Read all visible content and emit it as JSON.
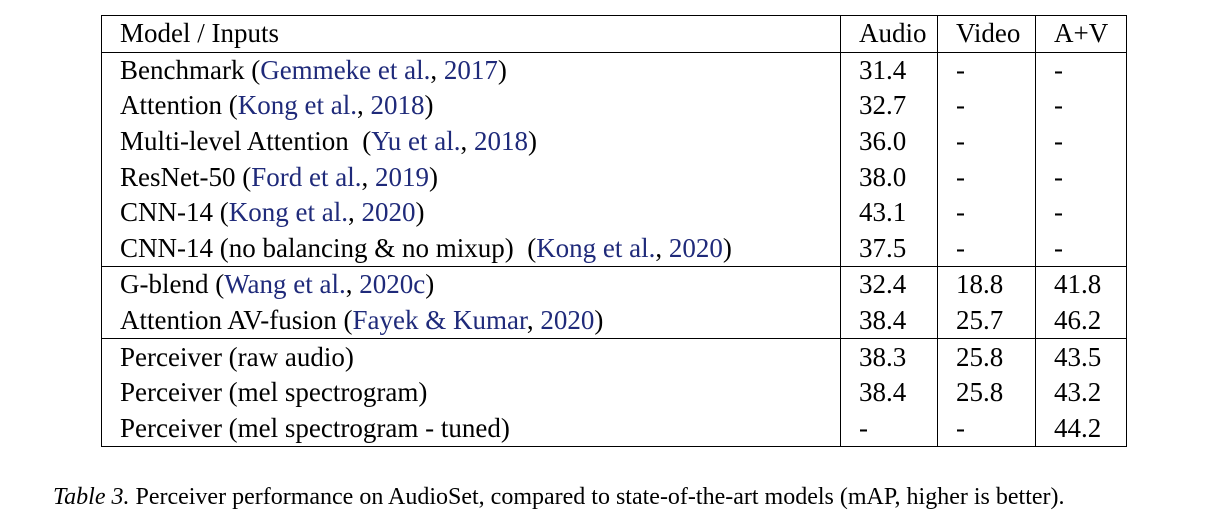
{
  "table": {
    "headers": [
      "Model / Inputs",
      "Audio",
      "Video",
      "A+V"
    ],
    "rows": [
      {
        "pre": "Benchmark (",
        "cite_authors": "Gemmeke et al.",
        "cite_sep": ", ",
        "cite_year": "2017",
        "post": ")",
        "audio": "31.4",
        "video": "-",
        "av": "-"
      },
      {
        "pre": "Attention (",
        "cite_authors": "Kong et al.",
        "cite_sep": ", ",
        "cite_year": "2018",
        "post": ")",
        "audio": "32.7",
        "video": "-",
        "av": "-"
      },
      {
        "pre": "Multi-level Attention  (",
        "cite_authors": "Yu et al.",
        "cite_sep": ", ",
        "cite_year": "2018",
        "post": ")",
        "audio": "36.0",
        "video": "-",
        "av": "-"
      },
      {
        "pre": "ResNet-50 (",
        "cite_authors": "Ford et al.",
        "cite_sep": ", ",
        "cite_year": "2019",
        "post": ")",
        "audio": "38.0",
        "video": "-",
        "av": "-"
      },
      {
        "pre": "CNN-14 (",
        "cite_authors": "Kong et al.",
        "cite_sep": ", ",
        "cite_year": "2020",
        "post": ")",
        "audio": "43.1",
        "video": "-",
        "av": "-"
      },
      {
        "pre": "CNN-14 (no balancing & no mixup)  (",
        "cite_authors": "Kong et al.",
        "cite_sep": ", ",
        "cite_year": "2020",
        "post": ")",
        "audio": "37.5",
        "video": "-",
        "av": "-"
      },
      {
        "pre": "G-blend (",
        "cite_authors": "Wang et al.",
        "cite_sep": ", ",
        "cite_year": "2020c",
        "post": ")",
        "audio": "32.4",
        "video": "18.8",
        "av": "41.8"
      },
      {
        "pre": "Attention AV-fusion (",
        "cite_authors": "Fayek & Kumar",
        "cite_sep": ", ",
        "cite_year": "2020",
        "post": ")",
        "audio": "38.4",
        "video": "25.7",
        "av": "46.2"
      },
      {
        "pre": "Perceiver (raw audio)",
        "audio": "38.3",
        "video": "25.8",
        "av": "43.5"
      },
      {
        "pre": "Perceiver (mel spectrogram)",
        "audio": "38.4",
        "video": "25.8",
        "av": "43.2"
      },
      {
        "pre": "Perceiver (mel spectrogram - tuned)",
        "audio": "-",
        "video": "-",
        "av": "44.2"
      }
    ]
  },
  "caption": {
    "label": "Table 3.",
    "text": "Perceiver performance on AudioSet, compared to state-of-the-art models (mAP, higher is better)."
  },
  "colors": {
    "citation": "#1f2a7a",
    "text": "#000000",
    "rule": "#000000"
  }
}
